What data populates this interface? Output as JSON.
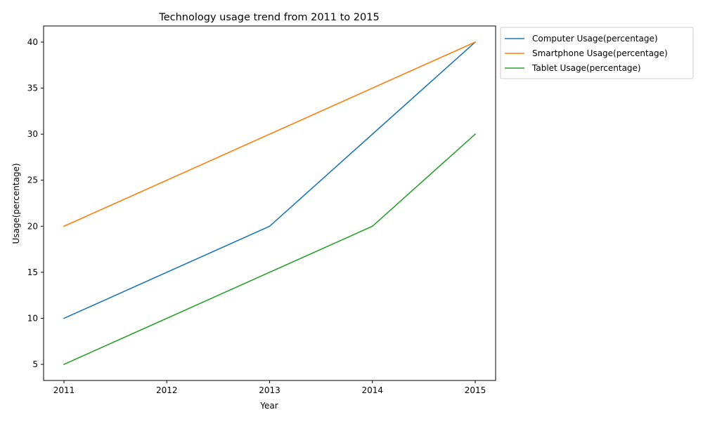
{
  "chart_data": {
    "type": "line",
    "title": "Technology usage trend from 2011 to 2015",
    "xlabel": "Year",
    "ylabel": "Usage(percentage)",
    "x": [
      "2011",
      "2012",
      "2013",
      "2014",
      "2015"
    ],
    "yticks": [
      5,
      10,
      15,
      20,
      25,
      30,
      35,
      40
    ],
    "ylim": [
      3.25,
      41.75
    ],
    "grid": false,
    "legend_position": "outside-top-right",
    "series": [
      {
        "name": "Computer Usage(percentage)",
        "color": "#1f77b4",
        "values": [
          10,
          15,
          20,
          30,
          40
        ]
      },
      {
        "name": "Smartphone Usage(percentage)",
        "color": "#ff7f0e",
        "values": [
          20,
          25,
          30,
          35,
          40
        ]
      },
      {
        "name": "Tablet Usage(percentage)",
        "color": "#2ca02c",
        "values": [
          5,
          10,
          15,
          20,
          30
        ]
      }
    ]
  }
}
